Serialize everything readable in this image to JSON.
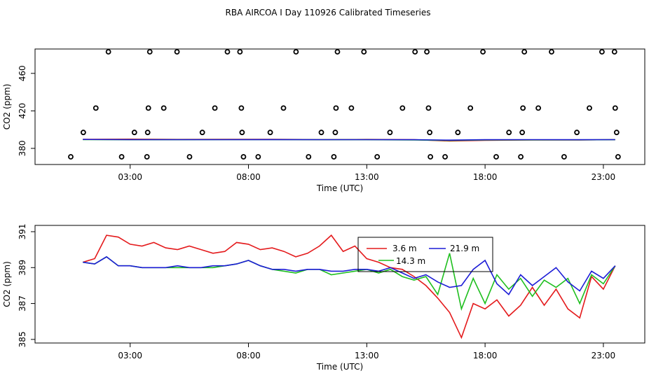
{
  "chart_data": [
    {
      "type": "line",
      "title": "RBA AIRCOA I  Day 110926  Calibrated Timeseries",
      "xlabel": "Time (UTC)",
      "ylabel": "CO2 (ppm)",
      "xlim": [
        -1.02,
        24.75
      ],
      "ylim": [
        362.8,
        486
      ],
      "xticks": [
        {
          "value": 3,
          "label": "03:00"
        },
        {
          "value": 8,
          "label": "08:00"
        },
        {
          "value": 13,
          "label": "13:00"
        },
        {
          "value": 18,
          "label": "18:00"
        },
        {
          "value": 23,
          "label": "23:00"
        }
      ],
      "yticks": [
        380,
        420,
        460
      ],
      "x": [
        1,
        3,
        5,
        7,
        9,
        11,
        13,
        15,
        16.5,
        18,
        20,
        22,
        23.5
      ],
      "series": [
        {
          "color": "#e41a1c",
          "values": [
            389.6,
            389.8,
            389.5,
            389.6,
            389.7,
            389.4,
            389.5,
            389.3,
            387.8,
            388.6,
            388.9,
            389.0,
            389.3
          ]
        },
        {
          "color": "#1fbf1f",
          "values": [
            389.4,
            389.2,
            389.2,
            389.3,
            389.3,
            389.2,
            389.2,
            389.0,
            388.4,
            388.9,
            389.1,
            389.1,
            389.2
          ]
        },
        {
          "color": "#1c1cd6",
          "values": [
            389.5,
            389.3,
            389.3,
            389.3,
            389.4,
            389.3,
            389.3,
            389.2,
            388.8,
            389.2,
            389.3,
            389.2,
            389.3
          ]
        }
      ],
      "points": {
        "color": "#000000",
        "x": [
          2.08,
          3.83,
          4.98,
          7.11,
          7.64,
          10.01,
          11.76,
          12.88,
          15.04,
          15.54,
          17.91,
          19.66,
          20.81,
          22.94,
          23.47,
          1.55,
          3.77,
          4.42,
          6.58,
          7.7,
          9.48,
          11.7,
          12.35,
          14.51,
          15.61,
          17.38,
          19.6,
          20.25,
          22.41,
          23.5,
          1.02,
          3.18,
          3.74,
          6.05,
          7.73,
          8.92,
          11.08,
          11.67,
          13.98,
          15.66,
          16.85,
          19.01,
          19.57,
          21.88,
          23.56,
          0.49,
          2.64,
          3.71,
          5.51,
          7.79,
          8.41,
          10.54,
          11.61,
          13.44,
          15.69,
          16.31,
          18.47,
          19.51,
          21.34,
          23.62
        ],
        "values": [
          483,
          483,
          483,
          483,
          483,
          483,
          483,
          483,
          483,
          483,
          483,
          483,
          483,
          483,
          483,
          423,
          423,
          423,
          423,
          423,
          423,
          423,
          423,
          423,
          423,
          423,
          423,
          423,
          423,
          423,
          397,
          397,
          397,
          397,
          397,
          397,
          397,
          397,
          397,
          397,
          397,
          397,
          397,
          397,
          397,
          371,
          371,
          371,
          371,
          371,
          371,
          371,
          371,
          371,
          371,
          371,
          371,
          371,
          371,
          371
        ]
      }
    },
    {
      "type": "line",
      "xlabel": "Time (UTC)",
      "ylabel": "CO2 (ppm)",
      "xlim": [
        -1.02,
        24.75
      ],
      "ylim": [
        384.8,
        391.35
      ],
      "xticks": [
        {
          "value": 3,
          "label": "03:00"
        },
        {
          "value": 8,
          "label": "08:00"
        },
        {
          "value": 13,
          "label": "13:00"
        },
        {
          "value": 18,
          "label": "18:00"
        },
        {
          "value": 23,
          "label": "23:00"
        }
      ],
      "yticks": [
        385,
        387,
        389,
        391
      ],
      "x": [
        1,
        1.5,
        2,
        2.5,
        3,
        3.5,
        4,
        4.5,
        5,
        5.5,
        6,
        6.5,
        7,
        7.5,
        8,
        8.5,
        9,
        9.5,
        10,
        10.5,
        11,
        11.5,
        12,
        12.5,
        13,
        13.5,
        14,
        14.5,
        15,
        15.5,
        16,
        16.5,
        17,
        17.5,
        18,
        18.5,
        19,
        19.5,
        20,
        20.5,
        21,
        21.5,
        22,
        22.5,
        23,
        23.5
      ],
      "series": [
        {
          "name": "3.6 m",
          "color": "#e41a1c",
          "values": [
            389.3,
            389.5,
            390.8,
            390.7,
            390.3,
            390.2,
            390.4,
            390.1,
            390.0,
            390.2,
            390.0,
            389.8,
            389.9,
            390.4,
            390.3,
            390.0,
            390.1,
            389.9,
            389.6,
            389.8,
            390.2,
            390.8,
            389.9,
            390.2,
            389.5,
            389.3,
            389.0,
            388.9,
            388.5,
            388.0,
            387.3,
            386.5,
            385.1,
            387.0,
            386.7,
            387.2,
            386.3,
            386.9,
            387.9,
            386.9,
            387.8,
            386.7,
            386.2,
            388.5,
            387.8,
            389.1
          ]
        },
        {
          "name": "14.3 m",
          "color": "#1fbf1f",
          "values": [
            389.3,
            389.2,
            389.6,
            389.1,
            389.1,
            389.0,
            389.0,
            389.0,
            389.0,
            389.0,
            389.0,
            389.0,
            389.1,
            389.2,
            389.4,
            389.1,
            388.9,
            388.8,
            388.7,
            388.9,
            388.9,
            388.6,
            388.7,
            388.8,
            388.9,
            388.7,
            388.9,
            388.5,
            388.3,
            388.5,
            387.5,
            389.8,
            386.7,
            388.4,
            387.0,
            388.6,
            387.8,
            388.4,
            387.4,
            388.3,
            387.9,
            388.4,
            387.0,
            388.6,
            388.1,
            389.1
          ]
        },
        {
          "name": "21.9 m",
          "color": "#1c1cd6",
          "values": [
            389.3,
            389.2,
            389.6,
            389.1,
            389.1,
            389.0,
            389.0,
            389.0,
            389.1,
            389.0,
            389.0,
            389.1,
            389.1,
            389.2,
            389.4,
            389.1,
            388.9,
            388.9,
            388.8,
            388.9,
            388.9,
            388.8,
            388.8,
            388.9,
            388.9,
            388.8,
            389.0,
            388.7,
            388.4,
            388.6,
            388.2,
            387.9,
            388.0,
            388.9,
            389.4,
            388.1,
            387.5,
            388.6,
            388.0,
            388.5,
            389.0,
            388.2,
            387.7,
            388.8,
            388.4,
            389.1
          ]
        }
      ]
    }
  ]
}
